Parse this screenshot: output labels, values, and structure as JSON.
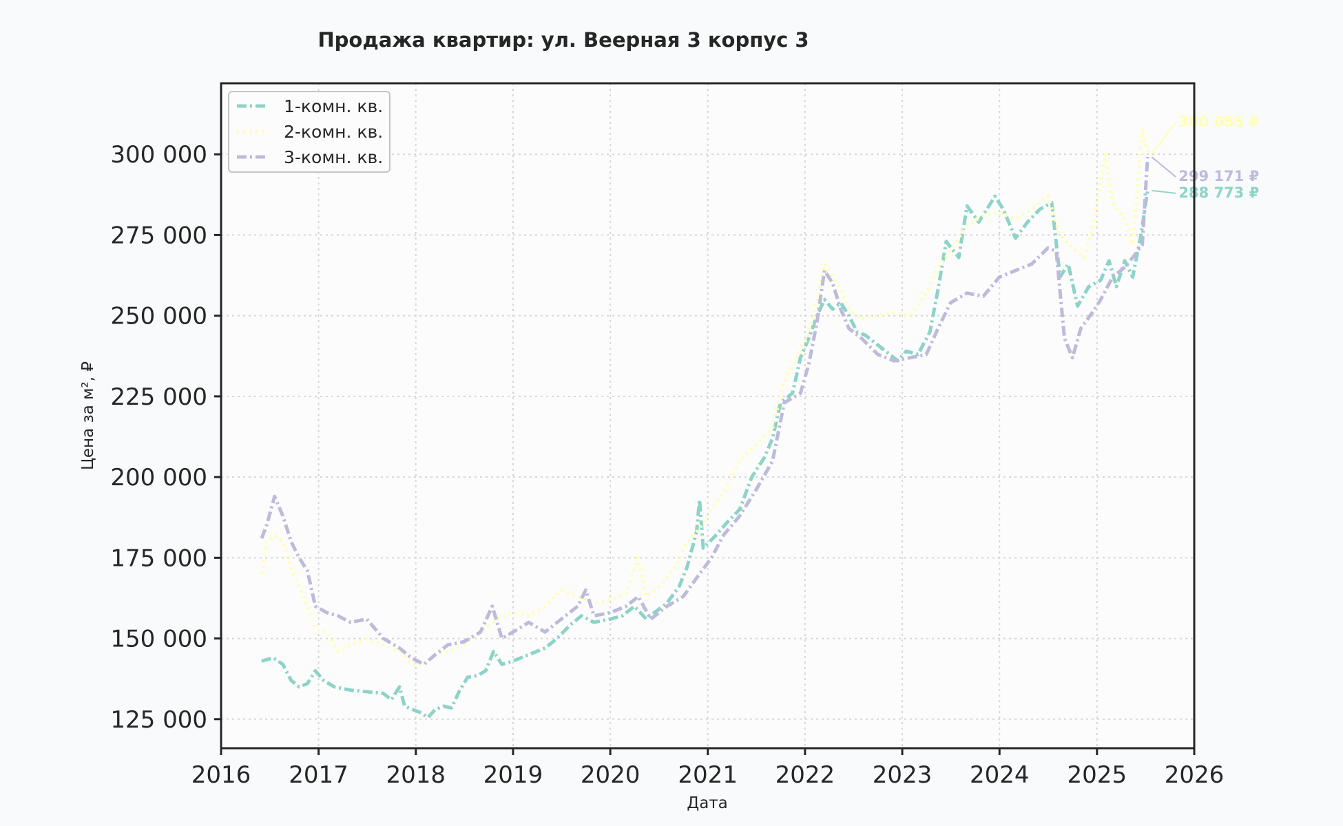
{
  "chart_data": {
    "type": "line",
    "title": "Продажа квартир: ул. Веерная 3 корпус 3",
    "xlabel": "Дата",
    "ylabel": "Цена за м², ₽",
    "xlim": [
      "2016-01-01",
      "2026-01-01"
    ],
    "ylim": [
      116000,
      322000
    ],
    "x_ticks": [
      "2016",
      "2017",
      "2018",
      "2019",
      "2020",
      "2021",
      "2022",
      "2023",
      "2024",
      "2025",
      "2026"
    ],
    "y_ticks": [
      {
        "value": 125000,
        "label": "125 000"
      },
      {
        "value": 150000,
        "label": "150 000"
      },
      {
        "value": 175000,
        "label": "175 000"
      },
      {
        "value": 200000,
        "label": "200 000"
      },
      {
        "value": 225000,
        "label": "225 000"
      },
      {
        "value": 250000,
        "label": "250 000"
      },
      {
        "value": 275000,
        "label": "275 000"
      },
      {
        "value": 300000,
        "label": "300 000"
      }
    ],
    "grid": true,
    "legend_position": "top-left",
    "series": [
      {
        "name": "1-комн. кв.",
        "color": "#8dd3c7",
        "dash": "dashdot",
        "end_label": "288 773 ₽",
        "points": [
          [
            "2016-06-01",
            143000
          ],
          [
            "2016-07-15",
            144000
          ],
          [
            "2016-08-20",
            142000
          ],
          [
            "2016-09-20",
            137000
          ],
          [
            "2016-10-20",
            135000
          ],
          [
            "2016-11-20",
            136000
          ],
          [
            "2016-12-20",
            140000
          ],
          [
            "2017-01-20",
            137000
          ],
          [
            "2017-03-01",
            135000
          ],
          [
            "2017-05-01",
            134000
          ],
          [
            "2017-07-01",
            133500
          ],
          [
            "2017-09-01",
            133000
          ],
          [
            "2017-10-01",
            131000
          ],
          [
            "2017-11-01",
            135000
          ],
          [
            "2017-11-20",
            129000
          ],
          [
            "2017-12-20",
            128000
          ],
          [
            "2018-01-20",
            127000
          ],
          [
            "2018-02-15",
            125500
          ],
          [
            "2018-03-15",
            128000
          ],
          [
            "2018-04-15",
            129000
          ],
          [
            "2018-05-15",
            128500
          ],
          [
            "2018-06-15",
            134000
          ],
          [
            "2018-07-15",
            138000
          ],
          [
            "2018-08-20",
            138500
          ],
          [
            "2018-09-20",
            140000
          ],
          [
            "2018-10-20",
            146000
          ],
          [
            "2018-11-20",
            142000
          ],
          [
            "2019-01-01",
            143000
          ],
          [
            "2019-03-01",
            145000
          ],
          [
            "2019-05-01",
            147000
          ],
          [
            "2019-06-15",
            150000
          ],
          [
            "2019-08-01",
            154000
          ],
          [
            "2019-09-15",
            157000
          ],
          [
            "2019-11-01",
            155000
          ],
          [
            "2020-01-01",
            156000
          ],
          [
            "2020-02-15",
            157000
          ],
          [
            "2020-04-01",
            160000
          ],
          [
            "2020-05-15",
            156000
          ],
          [
            "2020-06-15",
            158000
          ],
          [
            "2020-08-01",
            161000
          ],
          [
            "2020-09-15",
            166000
          ],
          [
            "2020-10-15",
            172000
          ],
          [
            "2020-11-20",
            183000
          ],
          [
            "2020-12-01",
            193000
          ],
          [
            "2020-12-15",
            178000
          ],
          [
            "2021-02-01",
            182000
          ],
          [
            "2021-03-15",
            186000
          ],
          [
            "2021-05-01",
            190000
          ],
          [
            "2021-06-15",
            200000
          ],
          [
            "2021-08-01",
            206000
          ],
          [
            "2021-09-01",
            212000
          ],
          [
            "2021-10-01",
            223000
          ],
          [
            "2021-11-15",
            226000
          ],
          [
            "2021-12-15",
            237000
          ],
          [
            "2022-01-15",
            243000
          ],
          [
            "2022-02-15",
            250000
          ],
          [
            "2022-03-15",
            255000
          ],
          [
            "2022-04-15",
            252000
          ],
          [
            "2022-05-15",
            254000
          ],
          [
            "2022-06-15",
            250000
          ],
          [
            "2022-07-15",
            245000
          ],
          [
            "2022-08-15",
            244000
          ],
          [
            "2022-09-15",
            242000
          ],
          [
            "2022-10-15",
            240000
          ],
          [
            "2022-11-15",
            238000
          ],
          [
            "2022-12-15",
            236000
          ],
          [
            "2023-01-15",
            239000
          ],
          [
            "2023-03-01",
            238000
          ],
          [
            "2023-04-15",
            245000
          ],
          [
            "2023-05-15",
            258000
          ],
          [
            "2023-06-15",
            273000
          ],
          [
            "2023-08-01",
            268000
          ],
          [
            "2023-09-01",
            284000
          ],
          [
            "2023-10-15",
            279000
          ],
          [
            "2023-12-15",
            287000
          ],
          [
            "2024-01-15",
            283000
          ],
          [
            "2024-03-01",
            274000
          ],
          [
            "2024-04-15",
            279000
          ],
          [
            "2024-06-01",
            283000
          ],
          [
            "2024-07-15",
            285000
          ],
          [
            "2024-08-15",
            262000
          ],
          [
            "2024-09-15",
            266000
          ],
          [
            "2024-10-20",
            253000
          ],
          [
            "2024-12-01",
            259000
          ],
          [
            "2025-01-15",
            261000
          ],
          [
            "2025-02-15",
            267000
          ],
          [
            "2025-03-15",
            259000
          ],
          [
            "2025-04-15",
            267000
          ],
          [
            "2025-05-15",
            262000
          ],
          [
            "2025-06-15",
            275000
          ],
          [
            "2025-07-10",
            288773
          ]
        ]
      },
      {
        "name": "2-комн. кв.",
        "color": "#ffffb3",
        "dash": "dotted",
        "end_label": "300 085 ₽",
        "points": [
          [
            "2016-06-01",
            170000
          ],
          [
            "2016-06-20",
            180000
          ],
          [
            "2016-07-20",
            182000
          ],
          [
            "2016-08-20",
            180000
          ],
          [
            "2016-09-20",
            172000
          ],
          [
            "2016-10-20",
            166000
          ],
          [
            "2016-11-20",
            160000
          ],
          [
            "2016-12-20",
            153000
          ],
          [
            "2017-02-01",
            152000
          ],
          [
            "2017-03-15",
            146000
          ],
          [
            "2017-05-01",
            148000
          ],
          [
            "2017-07-01",
            150000
          ],
          [
            "2017-09-01",
            148000
          ],
          [
            "2017-11-01",
            146000
          ],
          [
            "2017-12-15",
            142000
          ],
          [
            "2018-02-01",
            142000
          ],
          [
            "2018-03-15",
            145000
          ],
          [
            "2018-05-01",
            146000
          ],
          [
            "2018-07-01",
            148000
          ],
          [
            "2018-09-01",
            152000
          ],
          [
            "2018-11-01",
            156000
          ],
          [
            "2019-01-01",
            158000
          ],
          [
            "2019-03-01",
            157000
          ],
          [
            "2019-05-01",
            160000
          ],
          [
            "2019-07-01",
            165000
          ],
          [
            "2019-09-01",
            163000
          ],
          [
            "2019-11-01",
            161000
          ],
          [
            "2020-01-01",
            162000
          ],
          [
            "2020-03-01",
            164000
          ],
          [
            "2020-04-15",
            175000
          ],
          [
            "2020-05-15",
            163000
          ],
          [
            "2020-07-01",
            166000
          ],
          [
            "2020-09-01",
            172000
          ],
          [
            "2020-10-15",
            180000
          ],
          [
            "2020-12-01",
            184000
          ],
          [
            "2021-01-15",
            190000
          ],
          [
            "2021-03-01",
            195000
          ],
          [
            "2021-05-01",
            205000
          ],
          [
            "2021-07-01",
            210000
          ],
          [
            "2021-09-01",
            215000
          ],
          [
            "2021-10-15",
            230000
          ],
          [
            "2021-12-01",
            237000
          ],
          [
            "2022-01-15",
            244000
          ],
          [
            "2022-02-15",
            255000
          ],
          [
            "2022-03-15",
            266000
          ],
          [
            "2022-04-15",
            262000
          ],
          [
            "2022-05-15",
            258000
          ],
          [
            "2022-06-15",
            252000
          ],
          [
            "2022-08-01",
            249000
          ],
          [
            "2022-10-01",
            250000
          ],
          [
            "2022-12-01",
            251000
          ],
          [
            "2023-02-01",
            250000
          ],
          [
            "2023-04-01",
            257000
          ],
          [
            "2023-05-15",
            265000
          ],
          [
            "2023-07-01",
            270000
          ],
          [
            "2023-09-01",
            278000
          ],
          [
            "2023-11-01",
            281000
          ],
          [
            "2024-01-01",
            282000
          ],
          [
            "2024-03-01",
            280000
          ],
          [
            "2024-05-01",
            283000
          ],
          [
            "2024-07-01",
            287000
          ],
          [
            "2024-08-15",
            275000
          ],
          [
            "2024-10-01",
            271000
          ],
          [
            "2024-11-15",
            268000
          ],
          [
            "2024-12-15",
            277000
          ],
          [
            "2025-01-15",
            292000
          ],
          [
            "2025-02-01",
            300000
          ],
          [
            "2025-03-01",
            285000
          ],
          [
            "2025-04-15",
            280000
          ],
          [
            "2025-05-15",
            272000
          ],
          [
            "2025-06-20",
            308000
          ],
          [
            "2025-07-10",
            300085
          ]
        ]
      },
      {
        "name": "3-комн. кв.",
        "color": "#bebada",
        "dash": "dashdot",
        "end_label": "299 171 ₽",
        "points": [
          [
            "2016-06-01",
            181000
          ],
          [
            "2016-06-20",
            185000
          ],
          [
            "2016-07-20",
            194000
          ],
          [
            "2016-08-20",
            188000
          ],
          [
            "2016-09-20",
            180000
          ],
          [
            "2016-10-20",
            175000
          ],
          [
            "2016-11-20",
            171000
          ],
          [
            "2016-12-20",
            160000
          ],
          [
            "2017-02-01",
            158000
          ],
          [
            "2017-03-15",
            157000
          ],
          [
            "2017-05-01",
            155000
          ],
          [
            "2017-07-01",
            156000
          ],
          [
            "2017-09-01",
            150000
          ],
          [
            "2017-11-01",
            147000
          ],
          [
            "2017-12-15",
            144000
          ],
          [
            "2018-02-01",
            142000
          ],
          [
            "2018-03-15",
            145000
          ],
          [
            "2018-05-01",
            148000
          ],
          [
            "2018-07-01",
            149000
          ],
          [
            "2018-09-01",
            152000
          ],
          [
            "2018-10-15",
            160000
          ],
          [
            "2018-11-20",
            150000
          ],
          [
            "2019-01-01",
            152000
          ],
          [
            "2019-03-01",
            155000
          ],
          [
            "2019-05-01",
            152000
          ],
          [
            "2019-07-01",
            156000
          ],
          [
            "2019-09-01",
            160000
          ],
          [
            "2019-10-01",
            165000
          ],
          [
            "2019-11-01",
            157000
          ],
          [
            "2020-01-01",
            158000
          ],
          [
            "2020-03-01",
            160000
          ],
          [
            "2020-04-15",
            163000
          ],
          [
            "2020-06-01",
            156000
          ],
          [
            "2020-08-01",
            160000
          ],
          [
            "2020-10-01",
            163000
          ],
          [
            "2020-12-01",
            170000
          ],
          [
            "2021-01-15",
            175000
          ],
          [
            "2021-03-01",
            182000
          ],
          [
            "2021-05-01",
            188000
          ],
          [
            "2021-07-01",
            196000
          ],
          [
            "2021-09-01",
            205000
          ],
          [
            "2021-10-15",
            223000
          ],
          [
            "2021-12-15",
            226000
          ],
          [
            "2022-01-15",
            235000
          ],
          [
            "2022-02-15",
            248000
          ],
          [
            "2022-03-15",
            264000
          ],
          [
            "2022-04-15",
            260000
          ],
          [
            "2022-05-15",
            252000
          ],
          [
            "2022-06-15",
            246000
          ],
          [
            "2022-08-01",
            243000
          ],
          [
            "2022-10-01",
            238000
          ],
          [
            "2022-12-01",
            236000
          ],
          [
            "2023-02-01",
            237000
          ],
          [
            "2023-04-01",
            238000
          ],
          [
            "2023-05-15",
            246000
          ],
          [
            "2023-07-01",
            254000
          ],
          [
            "2023-09-01",
            257000
          ],
          [
            "2023-11-01",
            256000
          ],
          [
            "2024-01-01",
            262000
          ],
          [
            "2024-03-01",
            264000
          ],
          [
            "2024-05-01",
            266000
          ],
          [
            "2024-07-01",
            271000
          ],
          [
            "2024-08-01",
            270000
          ],
          [
            "2024-09-01",
            243000
          ],
          [
            "2024-10-01",
            237000
          ],
          [
            "2024-11-01",
            246000
          ],
          [
            "2024-12-15",
            251000
          ],
          [
            "2025-01-15",
            255000
          ],
          [
            "2025-03-01",
            262000
          ],
          [
            "2025-04-15",
            265000
          ],
          [
            "2025-05-15",
            268000
          ],
          [
            "2025-06-20",
            272000
          ],
          [
            "2025-07-10",
            299171
          ]
        ]
      }
    ]
  }
}
